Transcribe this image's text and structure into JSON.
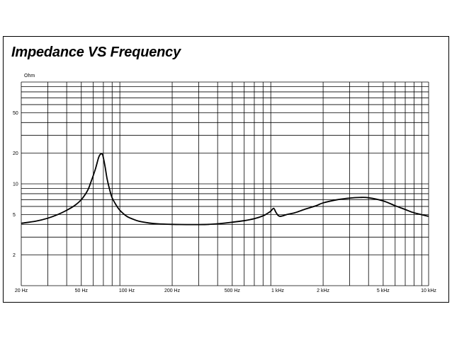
{
  "chart_data": {
    "type": "line",
    "title": "Impedance VS Frequency",
    "ylabel": "Ohm",
    "xlabel": "",
    "x_scale": "log",
    "y_scale": "log",
    "xlim": [
      20,
      10000
    ],
    "ylim": [
      1,
      100
    ],
    "grid": true,
    "x_ticks": [
      {
        "value": 20,
        "label": "20 Hz"
      },
      {
        "value": 50,
        "label": "50 Hz"
      },
      {
        "value": 100,
        "label": "100 Hz"
      },
      {
        "value": 200,
        "label": "200 Hz"
      },
      {
        "value": 500,
        "label": "500 Hz"
      },
      {
        "value": 1000,
        "label": "1 kHz"
      },
      {
        "value": 2000,
        "label": "2 kHz"
      },
      {
        "value": 5000,
        "label": "5 kHz"
      },
      {
        "value": 10000,
        "label": "10 kHz"
      }
    ],
    "y_ticks": [
      {
        "value": 2,
        "label": "2"
      },
      {
        "value": 5,
        "label": "5"
      },
      {
        "value": 10,
        "label": "10"
      },
      {
        "value": 20,
        "label": "20"
      },
      {
        "value": 50,
        "label": "50"
      }
    ],
    "series": [
      {
        "x": [
          20,
          25,
          30,
          35,
          40,
          45,
          50,
          55,
          58,
          62,
          65,
          67,
          69,
          70,
          72,
          74,
          77,
          80,
          85,
          90,
          100,
          110,
          120,
          140,
          160,
          200,
          250,
          300,
          350,
          400,
          500,
          600,
          700,
          800,
          850,
          900,
          940,
          970,
          1000,
          1030,
          1080,
          1150,
          1300,
          1500,
          1800,
          2000,
          2500,
          3000,
          3500,
          4000,
          5000,
          6000,
          7000,
          8000,
          10000
        ],
        "y": [
          4.1,
          4.3,
          4.6,
          5.0,
          5.5,
          6.1,
          7.0,
          8.6,
          10.5,
          14.0,
          18.0,
          19.6,
          19.5,
          18.0,
          14.5,
          11.3,
          8.8,
          7.3,
          6.2,
          5.5,
          4.8,
          4.5,
          4.3,
          4.13,
          4.05,
          4.0,
          3.98,
          3.98,
          4.0,
          4.05,
          4.2,
          4.35,
          4.55,
          4.85,
          5.1,
          5.4,
          5.75,
          5.3,
          4.95,
          4.8,
          4.85,
          5.0,
          5.2,
          5.6,
          6.1,
          6.5,
          7.0,
          7.25,
          7.35,
          7.3,
          6.8,
          6.1,
          5.6,
          5.2,
          4.8
        ]
      }
    ]
  }
}
